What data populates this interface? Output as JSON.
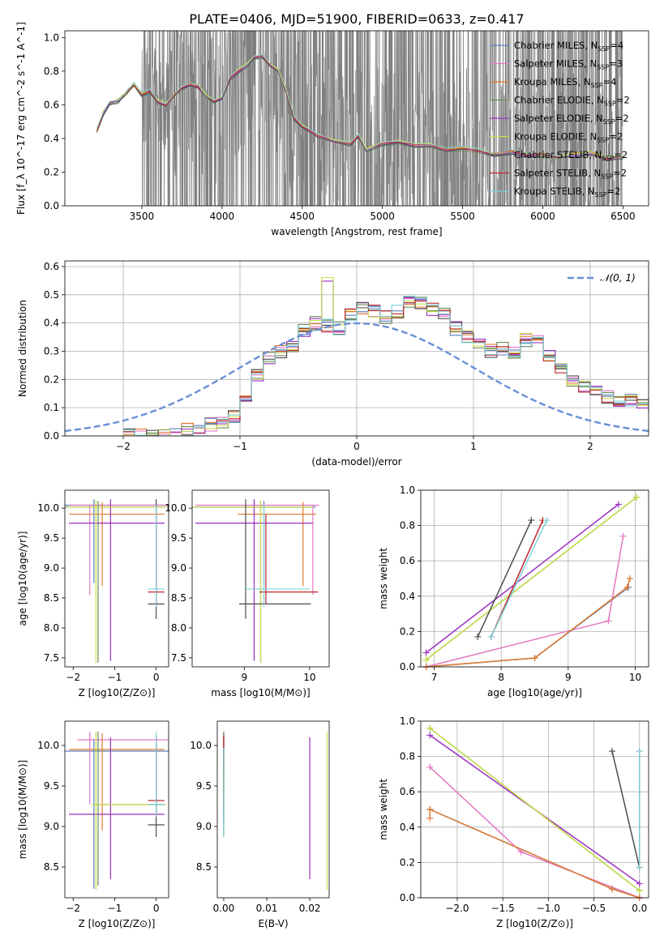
{
  "figure": {
    "title": "PLATE=0406, MJD=51900, FIBERID=0633, z=0.417"
  },
  "colors": {
    "grey": "#808080",
    "Chabrier MILES": "#5b7fbf",
    "Salpeter MILES": "#e377c2",
    "Kroupa MILES": "#e07a2f",
    "Chabrier ELODIE": "#6a8a5a",
    "Salpeter ELODIE": "#9b30c0",
    "Kroupa ELODIE": "#c8e04a",
    "Chabrier STELIB": "#4d4d4d",
    "Salpeter STELIB": "#c0282d",
    "Kroupa STELIB": "#7fd0d8",
    "normal": "#6a8fd8"
  },
  "chart_data": [
    {
      "id": "spectrum",
      "type": "line",
      "xlabel": "wavelength [Angstrom, rest frame]",
      "ylabel": "Flux [f_λ 10^-17 erg cm^-2 s^-1 A^-1]",
      "xlim": [
        3020,
        6660
      ],
      "ylim": [
        0,
        1.04
      ],
      "xticks": [
        3500,
        4000,
        4500,
        5000,
        5500,
        6000,
        6500
      ],
      "yticks": [
        0.0,
        0.2,
        0.4,
        0.6,
        0.8,
        1.0
      ],
      "legend_position": "top-right",
      "legend": [
        {
          "name": "Chabrier MILES",
          "n": "4"
        },
        {
          "name": "Salpeter MILES",
          "n": "3"
        },
        {
          "name": "Kroupa MILES",
          "n": "4"
        },
        {
          "name": "Chabrier ELODIE",
          "n": "2"
        },
        {
          "name": "Salpeter ELODIE",
          "n": "2"
        },
        {
          "name": "Kroupa ELODIE",
          "n": "2"
        },
        {
          "name": "Chabrier STELIB",
          "n": "2"
        },
        {
          "name": "Salpeter STELIB",
          "n": "2"
        },
        {
          "name": "Kroupa STELIB",
          "n": "2"
        }
      ],
      "model_x": [
        3220,
        3260,
        3300,
        3350,
        3400,
        3450,
        3500,
        3550,
        3600,
        3650,
        3700,
        3750,
        3800,
        3850,
        3900,
        3950,
        4000,
        4050,
        4100,
        4150,
        4200,
        4250,
        4300,
        4350,
        4400,
        4450,
        4500,
        4600,
        4700,
        4800,
        4850,
        4900,
        5000,
        5100,
        5200,
        5300,
        5400,
        5500,
        5600,
        5700,
        5800,
        5900,
        6000,
        6100,
        6200,
        6300,
        6400,
        6500
      ],
      "model_y": [
        0.45,
        0.55,
        0.61,
        0.62,
        0.67,
        0.72,
        0.66,
        0.68,
        0.62,
        0.6,
        0.66,
        0.7,
        0.72,
        0.71,
        0.65,
        0.62,
        0.64,
        0.76,
        0.8,
        0.83,
        0.88,
        0.89,
        0.84,
        0.8,
        0.68,
        0.52,
        0.47,
        0.42,
        0.38,
        0.37,
        0.42,
        0.33,
        0.37,
        0.38,
        0.36,
        0.36,
        0.33,
        0.34,
        0.33,
        0.3,
        0.32,
        0.3,
        0.3,
        0.29,
        0.3,
        0.31,
        0.28,
        0.29
      ]
    },
    {
      "id": "residuals",
      "type": "line",
      "xlabel": "(data-model)/error",
      "ylabel": "Normed distribution",
      "xlim": [
        -2.5,
        2.5
      ],
      "ylim": [
        0,
        0.62
      ],
      "xticks": [
        -2,
        -1,
        0,
        1,
        2
      ],
      "yticks": [
        0.0,
        0.1,
        0.2,
        0.3,
        0.4,
        0.5,
        0.6
      ],
      "grid": true,
      "legend_position": "top-right",
      "normal_label": "𝒩(0, 1)",
      "bin_width": 0.1,
      "bin_start": -2.0,
      "hist_values": [
        0.0,
        0.0,
        0.0,
        0.0,
        0.01,
        0.02,
        0.03,
        0.04,
        0.05,
        0.07,
        0.12,
        0.22,
        0.28,
        0.3,
        0.31,
        0.37,
        0.4,
        0.39,
        0.38,
        0.43,
        0.45,
        0.44,
        0.42,
        0.44,
        0.48,
        0.47,
        0.45,
        0.44,
        0.38,
        0.35,
        0.33,
        0.3,
        0.31,
        0.3,
        0.34,
        0.33,
        0.28,
        0.24,
        0.2,
        0.18,
        0.17,
        0.14,
        0.12,
        0.13,
        0.11,
        0.1
      ]
    },
    {
      "id": "z-age",
      "type": "scatter",
      "xlabel": "Z [log10(Z/Z⊙)]",
      "ylabel": "age  [log10(age/yr)]",
      "xlim": [
        -2.2,
        0.3
      ],
      "ylim": [
        7.35,
        10.3
      ],
      "xticks": [
        -2,
        -1,
        0
      ],
      "yticks": [
        7.5,
        8.0,
        8.5,
        9.0,
        9.5,
        10.0
      ],
      "points": [
        {
          "model": "Chabrier MILES",
          "x": -1.5,
          "y": 10.05,
          "xerr": [
            0.7,
            1.8
          ],
          "yerr": [
            1.3,
            0.1
          ]
        },
        {
          "model": "Salpeter MILES",
          "x": -1.6,
          "y": 10.05,
          "xerr": [
            0.5,
            1.9
          ],
          "yerr": [
            1.5,
            0.0
          ]
        },
        {
          "model": "Kroupa MILES",
          "x": -1.3,
          "y": 9.9,
          "xerr": [
            0.8,
            1.5
          ],
          "yerr": [
            1.2,
            0.2
          ]
        },
        {
          "model": "Chabrier ELODIE",
          "x": -1.4,
          "y": 10.02,
          "xerr": [
            0.8,
            1.6
          ],
          "yerr": [
            2.6,
            0.1
          ]
        },
        {
          "model": "Salpeter ELODIE",
          "x": -1.1,
          "y": 9.75,
          "xerr": [
            1.0,
            1.3
          ],
          "yerr": [
            2.3,
            0.4
          ]
        },
        {
          "model": "Kroupa ELODIE",
          "x": -1.45,
          "y": 10.02,
          "xerr": [
            0.7,
            1.7
          ],
          "yerr": [
            2.6,
            0.1
          ]
        },
        {
          "model": "Chabrier STELIB",
          "x": 0.0,
          "y": 8.4,
          "xerr": [
            0.2,
            0.2
          ],
          "yerr": [
            0.25,
            1.75
          ]
        },
        {
          "model": "Salpeter STELIB",
          "x": 0.0,
          "y": 8.6,
          "xerr": [
            0.2,
            0.2
          ],
          "yerr": [
            0.2,
            1.3
          ]
        },
        {
          "model": "Kroupa STELIB",
          "x": 0.0,
          "y": 8.65,
          "xerr": [
            0.2,
            0.2
          ],
          "yerr": [
            0.3,
            1.4
          ]
        }
      ]
    },
    {
      "id": "mass-age",
      "type": "scatter",
      "xlabel": "mass [log10(M/M⊙)]",
      "ylabel": "",
      "xlim": [
        8.2,
        10.3
      ],
      "ylim": [
        7.35,
        10.3
      ],
      "xticks": [
        9,
        10
      ],
      "yticks": [
        7.5,
        8.0,
        8.5,
        9.0,
        9.5,
        10.0
      ],
      "points": [
        {
          "model": "Chabrier MILES",
          "x": 9.3,
          "y": 10.02,
          "xerr": [
            1.1,
            0.8
          ],
          "yerr": [
            1.3,
            0.1
          ]
        },
        {
          "model": "Salpeter MILES",
          "x": 10.05,
          "y": 10.05,
          "xerr": [
            1.8,
            0.1
          ],
          "yerr": [
            1.5,
            0.0
          ]
        },
        {
          "model": "Kroupa MILES",
          "x": 9.9,
          "y": 9.9,
          "xerr": [
            1.0,
            0.2
          ],
          "yerr": [
            1.2,
            0.2
          ]
        },
        {
          "model": "Chabrier ELODIE",
          "x": 9.25,
          "y": 10.02,
          "xerr": [
            1.1,
            0.8
          ],
          "yerr": [
            2.6,
            0.1
          ]
        },
        {
          "model": "Salpeter ELODIE",
          "x": 9.15,
          "y": 9.75,
          "xerr": [
            0.9,
            0.9
          ],
          "yerr": [
            2.3,
            0.4
          ]
        },
        {
          "model": "Kroupa ELODIE",
          "x": 9.25,
          "y": 10.02,
          "xerr": [
            1.1,
            0.8
          ],
          "yerr": [
            2.6,
            0.1
          ]
        },
        {
          "model": "Chabrier STELIB",
          "x": 9.02,
          "y": 8.4,
          "xerr": [
            0.1,
            1.0
          ],
          "yerr": [
            0.25,
            1.75
          ]
        },
        {
          "model": "Salpeter STELIB",
          "x": 9.33,
          "y": 8.6,
          "xerr": [
            0.1,
            0.8
          ],
          "yerr": [
            0.2,
            1.3
          ]
        },
        {
          "model": "Kroupa STELIB",
          "x": 9.3,
          "y": 8.65,
          "xerr": [
            0.3,
            0.7
          ],
          "yerr": [
            0.3,
            1.4
          ]
        }
      ]
    },
    {
      "id": "age-weight",
      "type": "line",
      "xlabel": "age  [log10(age/yr)]",
      "ylabel": "mass weight",
      "xlim": [
        6.8,
        10.2
      ],
      "ylim": [
        0,
        1.0
      ],
      "xticks": [
        7,
        8,
        9,
        10
      ],
      "yticks": [
        0.0,
        0.2,
        0.4,
        0.6,
        0.8,
        1.0
      ],
      "grid": true,
      "series": [
        {
          "model": "Chabrier MILES",
          "x": [
            6.88,
            8.5,
            9.9
          ],
          "y": [
            0.0,
            0.05,
            0.45
          ]
        },
        {
          "model": "Salpeter MILES",
          "x": [
            6.88,
            9.6,
            9.82
          ],
          "y": [
            0.0,
            0.26,
            0.74
          ]
        },
        {
          "model": "Kroupa MILES",
          "x": [
            6.88,
            8.5,
            9.88,
            9.92
          ],
          "y": [
            0.0,
            0.05,
            0.45,
            0.5
          ]
        },
        {
          "model": "Chabrier ELODIE",
          "x": [
            6.88,
            10.02
          ],
          "y": [
            0.04,
            0.96
          ]
        },
        {
          "model": "Salpeter ELODIE",
          "x": [
            6.88,
            9.75
          ],
          "y": [
            0.08,
            0.92
          ]
        },
        {
          "model": "Kroupa ELODIE",
          "x": [
            6.88,
            10.02
          ],
          "y": [
            0.04,
            0.96
          ]
        },
        {
          "model": "Chabrier STELIB",
          "x": [
            7.65,
            8.45
          ],
          "y": [
            0.17,
            0.83
          ]
        },
        {
          "model": "Salpeter STELIB",
          "x": [
            7.85,
            8.62
          ],
          "y": [
            0.17,
            0.83
          ]
        },
        {
          "model": "Kroupa STELIB",
          "x": [
            7.85,
            8.68
          ],
          "y": [
            0.17,
            0.83
          ]
        }
      ]
    },
    {
      "id": "z-mass",
      "type": "scatter",
      "xlabel": "Z [log10(Z/Z⊙)]",
      "ylabel": "mass [log10(M/M⊙)]",
      "xlim": [
        -2.2,
        0.3
      ],
      "ylim": [
        8.12,
        10.3
      ],
      "xticks": [
        -2,
        -1,
        0
      ],
      "yticks": [
        8.5,
        9.0,
        9.5,
        10.0
      ],
      "points": [
        {
          "model": "Chabrier MILES",
          "x": -1.5,
          "y": 9.93,
          "xerr": [
            0.7,
            1.8
          ],
          "yerr": [
            1.7,
            0.15
          ]
        },
        {
          "model": "Salpeter MILES",
          "x": -1.6,
          "y": 10.07,
          "xerr": [
            0.3,
            1.9
          ],
          "yerr": [
            0.8,
            0.1
          ]
        },
        {
          "model": "Kroupa MILES",
          "x": -1.3,
          "y": 9.95,
          "xerr": [
            0.8,
            1.5
          ],
          "yerr": [
            1.0,
            0.2
          ]
        },
        {
          "model": "Chabrier ELODIE",
          "x": -1.4,
          "y": 9.27,
          "xerr": [
            0.1,
            1.6
          ],
          "yerr": [
            1.0,
            0.9
          ]
        },
        {
          "model": "Salpeter ELODIE",
          "x": -1.1,
          "y": 9.15,
          "xerr": [
            1.0,
            1.3
          ],
          "yerr": [
            0.8,
            0.95
          ]
        },
        {
          "model": "Kroupa ELODIE",
          "x": -1.45,
          "y": 9.27,
          "xerr": [
            0.1,
            1.7
          ],
          "yerr": [
            1.05,
            0.9
          ]
        },
        {
          "model": "Chabrier STELIB",
          "x": 0.0,
          "y": 9.02,
          "xerr": [
            0.2,
            0.2
          ],
          "yerr": [
            0.15,
            1.1
          ]
        },
        {
          "model": "Salpeter STELIB",
          "x": 0.0,
          "y": 9.32,
          "xerr": [
            0.2,
            0.2
          ],
          "yerr": [
            0.15,
            0.8
          ]
        },
        {
          "model": "Kroupa STELIB",
          "x": 0.0,
          "y": 9.27,
          "xerr": [
            0.2,
            0.2
          ],
          "yerr": [
            0.15,
            0.9
          ]
        }
      ]
    },
    {
      "id": "ebv-mass",
      "type": "scatter",
      "xlabel": "E(B-V)",
      "ylabel": "",
      "xlim": [
        -0.0015,
        0.0245
      ],
      "ylim": [
        8.12,
        10.3
      ],
      "xticks": [
        0.0,
        0.01,
        0.02
      ],
      "xtick_labels": [
        "0.00",
        "0.01",
        "0.02"
      ],
      "yticks": [
        8.5,
        9.0,
        9.5,
        10.0
      ],
      "points": [
        {
          "model": "Chabrier MILES",
          "x": 0.0,
          "y": 9.93,
          "yerr": [
            0.9,
            0.15
          ]
        },
        {
          "model": "Salpeter MILES",
          "x": 0.0,
          "y": 10.07,
          "yerr": [
            0.4,
            0.1
          ]
        },
        {
          "model": "Kroupa MILES",
          "x": 0.0,
          "y": 9.95,
          "yerr": [
            0.5,
            0.2
          ]
        },
        {
          "model": "Chabrier ELODIE",
          "x": 0.0,
          "y": 9.27,
          "yerr": [
            0.3,
            0.9
          ]
        },
        {
          "model": "Salpeter ELODIE",
          "x": 0.02,
          "y": 9.15,
          "yerr": [
            0.8,
            0.95
          ]
        },
        {
          "model": "Kroupa ELODIE",
          "x": 0.024,
          "y": 9.27,
          "yerr": [
            1.05,
            0.9
          ]
        },
        {
          "model": "Chabrier STELIB",
          "x": 0.0,
          "y": 9.02,
          "yerr": [
            0.15,
            1.1
          ]
        },
        {
          "model": "Salpeter STELIB",
          "x": 0.0,
          "y": 9.32,
          "yerr": [
            0.15,
            0.8
          ]
        },
        {
          "model": "Kroupa STELIB",
          "x": 0.0,
          "y": 9.27,
          "yerr": [
            0.4,
            0.7
          ]
        }
      ]
    },
    {
      "id": "z-weight",
      "type": "line",
      "xlabel": "Z [log10(Z/Z⊙)]",
      "ylabel": "mass weight",
      "xlim": [
        -2.4,
        0.1
      ],
      "ylim": [
        0,
        1.0
      ],
      "xticks": [
        -2.0,
        -1.5,
        -1.0,
        -0.5,
        0.0
      ],
      "yticks": [
        0.0,
        0.2,
        0.4,
        0.6,
        0.8,
        1.0
      ],
      "grid": true,
      "series": [
        {
          "model": "Chabrier MILES",
          "x": [
            -2.3,
            -0.3,
            0.0
          ],
          "y": [
            0.5,
            0.05,
            0.0
          ]
        },
        {
          "model": "Salpeter MILES",
          "x": [
            -2.3,
            -1.3,
            0.0
          ],
          "y": [
            0.74,
            0.26,
            0.0
          ]
        },
        {
          "model": "Kroupa MILES",
          "x": [
            -2.3,
            -2.3,
            -0.3,
            0.0
          ],
          "y": [
            0.45,
            0.5,
            0.05,
            0.0
          ]
        },
        {
          "model": "Chabrier ELODIE",
          "x": [
            -2.3,
            0.0
          ],
          "y": [
            0.96,
            0.04
          ]
        },
        {
          "model": "Salpeter ELODIE",
          "x": [
            -2.3,
            0.0
          ],
          "y": [
            0.92,
            0.08
          ]
        },
        {
          "model": "Kroupa ELODIE",
          "x": [
            -2.3,
            0.0
          ],
          "y": [
            0.96,
            0.04
          ]
        },
        {
          "model": "Chabrier STELIB",
          "x": [
            -0.3,
            0.0
          ],
          "y": [
            0.83,
            0.17
          ]
        },
        {
          "model": "Salpeter STELIB",
          "x": [
            0.0,
            0.0
          ],
          "y": [
            0.83,
            0.17
          ]
        },
        {
          "model": "Kroupa STELIB",
          "x": [
            0.0,
            0.0
          ],
          "y": [
            0.83,
            0.17
          ]
        }
      ]
    }
  ]
}
